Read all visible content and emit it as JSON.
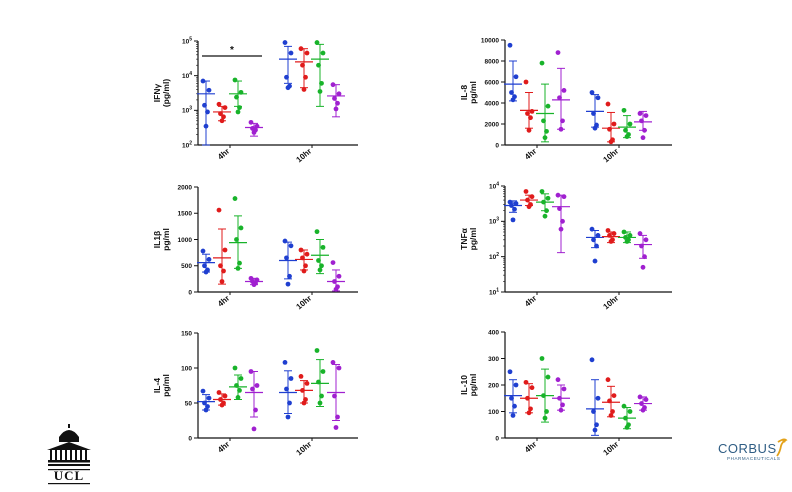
{
  "group_labels": [
    "4hr",
    "10hr"
  ],
  "colors": {
    "blue": "#1f3fd0",
    "red": "#e01b1b",
    "green": "#18b32a",
    "purple": "#a020d0"
  },
  "logos": {
    "ucl": "UCL",
    "corbus": "CORBUS",
    "corbus_sub": "PHARMACEUTICALS"
  },
  "chart_data": [
    {
      "id": "ifng",
      "type": "scatter",
      "ylabel": [
        "IFNγ",
        "(pg/ml)"
      ],
      "scale": "log",
      "ylim": [
        100,
        100000
      ],
      "yticks": [
        100,
        1000,
        10000,
        100000
      ],
      "ytick_labels": [
        [
          "10",
          "2"
        ],
        [
          "10",
          "3"
        ],
        [
          "10",
          "4"
        ],
        [
          "10",
          "5"
        ]
      ],
      "annotation": {
        "text": "*",
        "from_series": 0,
        "to_series": 3,
        "group": 0
      },
      "groups": [
        [
          {
            "color": "blue",
            "mean": 3000,
            "low": 100,
            "high": 7000,
            "points": [
              7000,
              3800,
              1400,
              900,
              350
            ]
          },
          {
            "color": "red",
            "mean": 900,
            "low": 500,
            "high": 1300,
            "points": [
              1500,
              1200,
              800,
              650,
              500
            ]
          },
          {
            "color": "green",
            "mean": 3000,
            "low": 1300,
            "high": 7000,
            "points": [
              7500,
              3300,
              2400,
              1200,
              900
            ]
          },
          {
            "color": "purple",
            "mean": 320,
            "low": 180,
            "high": 420,
            "points": [
              450,
              350,
              300,
              270,
              230
            ]
          }
        ],
        [
          {
            "color": "blue",
            "mean": 30000,
            "low": 6000,
            "high": 70000,
            "points": [
              90000,
              45000,
              9000,
              5000,
              4500
            ]
          },
          {
            "color": "red",
            "mean": 25000,
            "low": 4500,
            "high": 60000,
            "points": [
              60000,
              45000,
              20000,
              9000,
              4000
            ]
          },
          {
            "color": "green",
            "mean": 30000,
            "low": 1300,
            "high": 80000,
            "points": [
              90000,
              45000,
              20000,
              6000,
              3500
            ]
          },
          {
            "color": "purple",
            "mean": 2600,
            "low": 650,
            "high": 5500,
            "points": [
              5500,
              3000,
              2200,
              1600,
              1100
            ]
          }
        ]
      ]
    },
    {
      "id": "il8",
      "type": "scatter",
      "ylabel": [
        "IL-8",
        "pg/ml"
      ],
      "scale": "linear",
      "ylim": [
        0,
        10000
      ],
      "yticks": [
        0,
        2000,
        4000,
        6000,
        8000,
        10000
      ],
      "ytick_labels": [
        "0",
        "2000",
        "4000",
        "6000",
        "8000",
        "10000"
      ],
      "groups": [
        [
          {
            "color": "blue",
            "mean": 5800,
            "low": 4200,
            "high": 8000,
            "points": [
              9500,
              6500,
              5000,
              4600,
              4300
            ]
          },
          {
            "color": "red",
            "mean": 3300,
            "low": 1600,
            "high": 5000,
            "points": [
              6000,
              3200,
              3000,
              2600,
              1400
            ]
          },
          {
            "color": "green",
            "mean": 3000,
            "low": 300,
            "high": 5800,
            "points": [
              7800,
              3700,
              2300,
              1300,
              700
            ]
          },
          {
            "color": "purple",
            "mean": 4300,
            "low": 1500,
            "high": 7300,
            "points": [
              8800,
              5200,
              4500,
              2300,
              1500
            ]
          }
        ],
        [
          {
            "color": "blue",
            "mean": 3200,
            "low": 1700,
            "high": 4800,
            "points": [
              5000,
              4500,
              3000,
              1900,
              1600
            ]
          },
          {
            "color": "red",
            "mean": 1600,
            "low": 300,
            "high": 3100,
            "points": [
              3900,
              2000,
              1500,
              500,
              300
            ]
          },
          {
            "color": "green",
            "mean": 1700,
            "low": 700,
            "high": 2800,
            "points": [
              3300,
              2000,
              1400,
              1000,
              800
            ]
          },
          {
            "color": "purple",
            "mean": 2200,
            "low": 1400,
            "high": 3200,
            "points": [
              3000,
              2800,
              2300,
              1400,
              700
            ]
          }
        ]
      ]
    },
    {
      "id": "il1b",
      "type": "scatter",
      "ylabel": [
        "IL1β",
        "pg/ml"
      ],
      "scale": "linear",
      "ylim": [
        0,
        2000
      ],
      "yticks": [
        0,
        500,
        1000,
        1500,
        2000
      ],
      "ytick_labels": [
        "0",
        "500",
        "1000",
        "1500",
        "2000"
      ],
      "groups": [
        [
          {
            "color": "blue",
            "mean": 560,
            "low": 380,
            "high": 720,
            "points": [
              780,
              620,
              500,
              420,
              380
            ]
          },
          {
            "color": "red",
            "mean": 650,
            "low": 150,
            "high": 1200,
            "points": [
              1560,
              800,
              500,
              400,
              200
            ]
          },
          {
            "color": "green",
            "mean": 940,
            "low": 450,
            "high": 1450,
            "points": [
              1780,
              1220,
              1000,
              550,
              450
            ]
          },
          {
            "color": "purple",
            "mean": 200,
            "low": 140,
            "high": 260,
            "points": [
              260,
              230,
              200,
              170,
              140
            ]
          }
        ],
        [
          {
            "color": "blue",
            "mean": 600,
            "low": 250,
            "high": 950,
            "points": [
              970,
              880,
              650,
              300,
              150
            ]
          },
          {
            "color": "red",
            "mean": 620,
            "low": 420,
            "high": 800,
            "points": [
              800,
              720,
              650,
              500,
              400
            ]
          },
          {
            "color": "green",
            "mean": 700,
            "low": 350,
            "high": 1000,
            "points": [
              1150,
              850,
              600,
              500,
              420
            ]
          },
          {
            "color": "purple",
            "mean": 200,
            "low": 20,
            "high": 420,
            "points": [
              560,
              300,
              200,
              100,
              50
            ]
          }
        ]
      ]
    },
    {
      "id": "tnfa",
      "type": "scatter",
      "ylabel": [
        "TNFα",
        "pg/ml"
      ],
      "scale": "log",
      "ylim": [
        10,
        10000
      ],
      "yticks": [
        10,
        100,
        1000,
        10000
      ],
      "ytick_labels": [
        [
          "10",
          "1"
        ],
        [
          "10",
          "2"
        ],
        [
          "10",
          "3"
        ],
        [
          "10",
          "4"
        ]
      ],
      "groups": [
        [
          {
            "color": "blue",
            "mean": 2800,
            "low": 1800,
            "high": 3800,
            "points": [
              3500,
              3200,
              2800,
              2200,
              1100
            ]
          },
          {
            "color": "red",
            "mean": 4000,
            "low": 2800,
            "high": 5500,
            "points": [
              7000,
              5000,
              4000,
              3000,
              2600
            ]
          },
          {
            "color": "green",
            "mean": 3500,
            "low": 2000,
            "high": 6000,
            "points": [
              7000,
              4500,
              3500,
              2000,
              1400
            ]
          },
          {
            "color": "purple",
            "mean": 2600,
            "low": 130,
            "high": 5500,
            "points": [
              5500,
              5000,
              2300,
              1000,
              600
            ]
          }
        ],
        [
          {
            "color": "blue",
            "mean": 350,
            "low": 180,
            "high": 550,
            "points": [
              600,
              400,
              300,
              200,
              75
            ]
          },
          {
            "color": "red",
            "mean": 370,
            "low": 250,
            "high": 500,
            "points": [
              550,
              450,
              400,
              300,
              270
            ]
          },
          {
            "color": "green",
            "mean": 350,
            "low": 250,
            "high": 500,
            "points": [
              500,
              400,
              350,
              300,
              270
            ]
          },
          {
            "color": "purple",
            "mean": 220,
            "low": 90,
            "high": 400,
            "points": [
              450,
              300,
              200,
              100,
              50
            ]
          }
        ]
      ]
    },
    {
      "id": "il4",
      "type": "scatter",
      "ylabel": [
        "IL-4",
        "pg/ml"
      ],
      "scale": "linear",
      "ylim": [
        0,
        150
      ],
      "yticks": [
        0,
        50,
        100,
        150
      ],
      "ytick_labels": [
        "0",
        "50",
        "100",
        "150"
      ],
      "groups": [
        [
          {
            "color": "blue",
            "mean": 52,
            "low": 40,
            "high": 62,
            "points": [
              67,
              57,
              50,
              45,
              40
            ]
          },
          {
            "color": "red",
            "mean": 55,
            "low": 47,
            "high": 63,
            "points": [
              65,
              60,
              55,
              50,
              47
            ]
          },
          {
            "color": "green",
            "mean": 73,
            "low": 55,
            "high": 90,
            "points": [
              100,
              85,
              75,
              68,
              58
            ]
          },
          {
            "color": "purple",
            "mean": 65,
            "low": 30,
            "high": 95,
            "points": [
              95,
              75,
              70,
              40,
              13
            ]
          }
        ],
        [
          {
            "color": "blue",
            "mean": 65,
            "low": 35,
            "high": 96,
            "points": [
              108,
              85,
              70,
              50,
              30
            ]
          },
          {
            "color": "red",
            "mean": 68,
            "low": 50,
            "high": 82,
            "points": [
              88,
              78,
              68,
              55,
              50
            ]
          },
          {
            "color": "green",
            "mean": 78,
            "low": 45,
            "high": 112,
            "points": [
              125,
              95,
              80,
              60,
              50
            ]
          },
          {
            "color": "purple",
            "mean": 65,
            "low": 25,
            "high": 105,
            "points": [
              108,
              100,
              60,
              30,
              15
            ]
          }
        ]
      ]
    },
    {
      "id": "il10",
      "type": "scatter",
      "ylabel": [
        "IL-10",
        "pg/ml"
      ],
      "scale": "linear",
      "ylim": [
        0,
        400
      ],
      "yticks": [
        0,
        100,
        200,
        300,
        400
      ],
      "ytick_labels": [
        "0",
        "100",
        "200",
        "300",
        "400"
      ],
      "groups": [
        [
          {
            "color": "blue",
            "mean": 160,
            "low": 95,
            "high": 220,
            "points": [
              250,
              200,
              150,
              120,
              85
            ]
          },
          {
            "color": "red",
            "mean": 150,
            "low": 95,
            "high": 205,
            "points": [
              210,
              190,
              150,
              110,
              95
            ]
          },
          {
            "color": "green",
            "mean": 160,
            "low": 60,
            "high": 260,
            "points": [
              300,
              230,
              160,
              100,
              75
            ]
          },
          {
            "color": "purple",
            "mean": 150,
            "low": 105,
            "high": 200,
            "points": [
              220,
              185,
              150,
              125,
              105
            ]
          }
        ],
        [
          {
            "color": "blue",
            "mean": 110,
            "low": 10,
            "high": 220,
            "points": [
              295,
              150,
              100,
              50,
              30
            ]
          },
          {
            "color": "red",
            "mean": 135,
            "low": 80,
            "high": 195,
            "points": [
              220,
              160,
              140,
              100,
              85
            ]
          },
          {
            "color": "green",
            "mean": 75,
            "low": 35,
            "high": 115,
            "points": [
              120,
              100,
              75,
              50,
              40
            ]
          },
          {
            "color": "purple",
            "mean": 130,
            "low": 105,
            "high": 155,
            "points": [
              155,
              145,
              130,
              115,
              105
            ]
          }
        ]
      ]
    }
  ]
}
